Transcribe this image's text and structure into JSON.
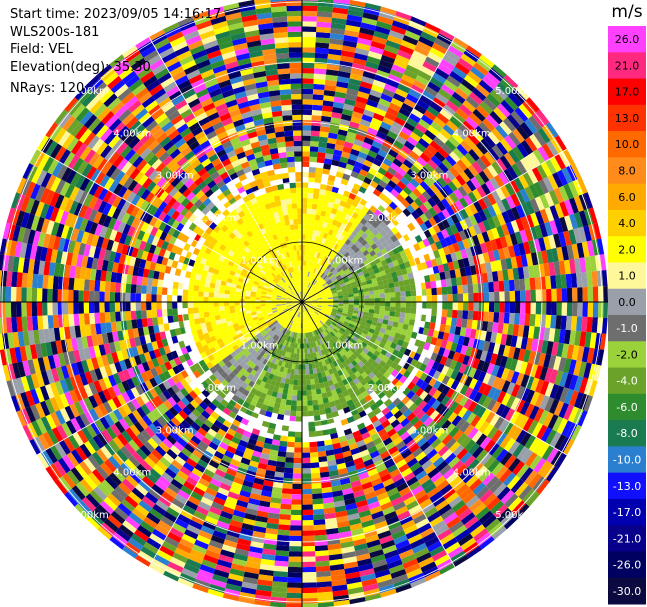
{
  "header": {
    "start_time": "Start time: 2023/09/05 14:16:17",
    "instrument": "WLS200s-181",
    "field": "Field: VEL",
    "elevation": "Elevation(deg): 35.30",
    "nrays": "NRays: 120"
  },
  "chart_data": {
    "type": "heatmap",
    "projection": "polar-ppi",
    "field": "VEL",
    "units_label": "m/s",
    "rings": [
      "1.00km",
      "2.00km",
      "3.00km",
      "4.00km",
      "5.00km"
    ],
    "radial_gates_km": [
      0,
      6.0
    ],
    "n_spokes": 12,
    "colorbar": {
      "ticks": [
        "26.0",
        "21.0",
        "17.0",
        "13.0",
        "10.0",
        "8.0",
        "6.0",
        "4.0",
        "2.0",
        "1.0",
        "0.0",
        "-1.0",
        "-2.0",
        "-4.0",
        "-6.0",
        "-8.0",
        "-10.0",
        "-13.0",
        "-17.0",
        "-21.0",
        "-26.0",
        "-30.0"
      ],
      "colors": [
        "#ff40ff",
        "#ff2a80",
        "#ff0000",
        "#ff3300",
        "#ff6a00",
        "#ff8c1a",
        "#ffaa00",
        "#ffd000",
        "#ffff00",
        "#fff89a",
        "#9aa0aa",
        "#6e6e6e",
        "#9bd13a",
        "#6aa22a",
        "#2e8b2e",
        "#1a7a50",
        "#2a7fd0",
        "#1010ff",
        "#0000b0",
        "#08008a",
        "#000060",
        "#0a0a40"
      ]
    }
  }
}
